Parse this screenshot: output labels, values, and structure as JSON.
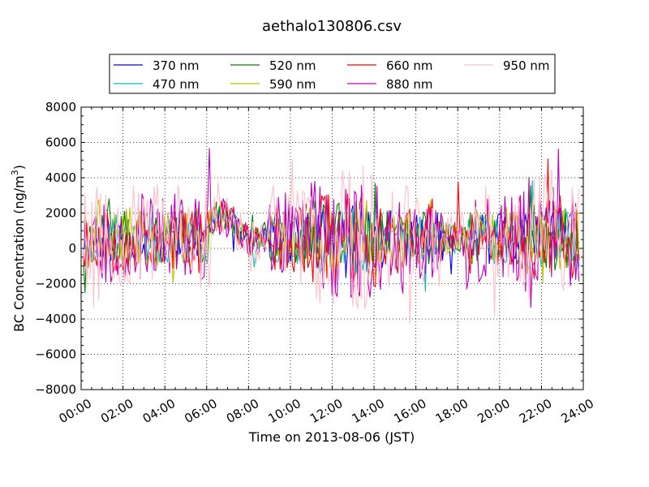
{
  "chart_data": {
    "type": "line",
    "title": "aethalo130806.csv",
    "xlabel": "Time on 2013-08-06 (JST)",
    "ylabel_main": "BC Concentration (ng/m",
    "ylabel_sup": "3",
    "ylabel_close": ")",
    "x_range_hours": [
      0,
      24
    ],
    "ylim": [
      -8000,
      8000
    ],
    "x_tick_labels": [
      "00:00",
      "02:00",
      "04:00",
      "06:00",
      "08:00",
      "10:00",
      "12:00",
      "14:00",
      "16:00",
      "18:00",
      "20:00",
      "22:00",
      "24:00"
    ],
    "y_tick_labels": [
      "8000",
      "6000",
      "4000",
      "2000",
      "0",
      "−2000",
      "−4000",
      "−6000",
      "−8000"
    ],
    "y_ticks": [
      8000,
      6000,
      4000,
      2000,
      0,
      -2000,
      -4000,
      -6000,
      -8000
    ],
    "grid": true,
    "legend_position": "top-center",
    "series": [
      {
        "name": "370 nm",
        "color": "#0000ff",
        "spread": 900,
        "seed": 11
      },
      {
        "name": "470 nm",
        "color": "#00bfbf",
        "spread": 950,
        "seed": 23
      },
      {
        "name": "520 nm",
        "color": "#008000",
        "spread": 1000,
        "seed": 37
      },
      {
        "name": "590 nm",
        "color": "#bfbf00",
        "spread": 1100,
        "seed": 41
      },
      {
        "name": "660 nm",
        "color": "#ff0000",
        "spread": 1300,
        "seed": 53
      },
      {
        "name": "880 nm",
        "color": "#bf00bf",
        "spread": 1600,
        "seed": 67
      },
      {
        "name": "950 nm",
        "color": "#ffc0cb",
        "spread": 1900,
        "seed": 79
      }
    ]
  }
}
